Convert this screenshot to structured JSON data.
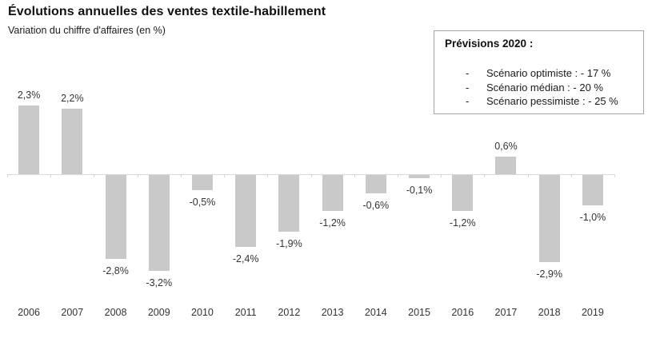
{
  "header": {
    "title": "Évolutions annuelles des ventes textile-habillement",
    "subtitle": "Variation du chiffre d'affaires (en %)"
  },
  "forecast_box": {
    "title": "Prévisions 2020 :",
    "items": [
      {
        "bullet": "-",
        "label": "Scénario optimiste : - 17 %"
      },
      {
        "bullet": "-",
        "label": "Scénario médian : - 20 %"
      },
      {
        "bullet": "-",
        "label": "Scénario pessimiste : - 25 %"
      }
    ]
  },
  "chart_data": {
    "type": "bar",
    "title": "Évolutions annuelles des ventes textile-habillement",
    "subtitle": "Variation du chiffre d'affaires (en %)",
    "xlabel": "",
    "ylabel": "Variation du chiffre d'affaires (en %)",
    "categories": [
      "2006",
      "2007",
      "2008",
      "2009",
      "2010",
      "2011",
      "2012",
      "2013",
      "2014",
      "2015",
      "2016",
      "2017",
      "2018",
      "2019"
    ],
    "values": [
      2.3,
      2.2,
      -2.8,
      -3.2,
      -0.5,
      -2.4,
      -1.9,
      -1.2,
      -0.6,
      -0.1,
      -1.2,
      0.6,
      -2.9,
      -1.0
    ],
    "value_labels": [
      "2,3%",
      "2,2%",
      "-2,8%",
      "-3,2%",
      "-0,5%",
      "-2,4%",
      "-1,9%",
      "-1,2%",
      "-0,6%",
      "-0,1%",
      "-1,2%",
      "0,6%",
      "-2,9%",
      "-1,0%"
    ],
    "ylim": [
      -3.5,
      2.5
    ],
    "grid": false,
    "legend": "none",
    "bar_color": "#c9c9c9",
    "axis_color": "#d9d9d9",
    "label_color": "#333333"
  }
}
